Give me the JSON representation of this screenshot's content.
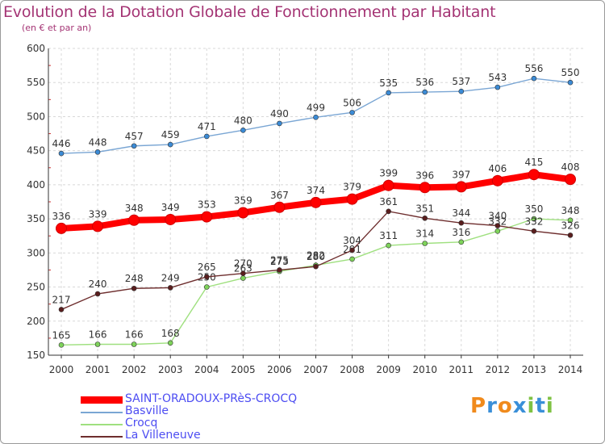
{
  "header": {
    "title": "Evolution de la Dotation Globale de Fonctionnement par Habitant",
    "subtitle": "(en € et par an)"
  },
  "chart_data": {
    "type": "line",
    "title": "Evolution de la Dotation Globale de Fonctionnement par Habitant",
    "subtitle": "(en € et par an)",
    "x": [
      2000,
      2001,
      2002,
      2003,
      2004,
      2005,
      2006,
      2007,
      2008,
      2009,
      2010,
      2011,
      2012,
      2013,
      2014
    ],
    "ylim": [
      150,
      600
    ],
    "yticks": [
      150,
      200,
      250,
      300,
      350,
      400,
      450,
      500,
      550,
      600
    ],
    "grid": true,
    "legend_position": "bottom-left",
    "series": [
      {
        "name": "Basville",
        "color": "#7aa6d4",
        "marker": "#3b8bd6",
        "values": [
          446,
          448,
          457,
          459,
          471,
          480,
          490,
          499,
          506,
          535,
          536,
          537,
          543,
          556,
          550
        ]
      },
      {
        "name": "Crocq",
        "color": "#9fe07f",
        "marker": "#7ed35a",
        "values": [
          165,
          166,
          166,
          168,
          250,
          263,
          273,
          282,
          291,
          311,
          314,
          316,
          332,
          350,
          348
        ]
      },
      {
        "name": "La Villeneuve",
        "color": "#6e2e2e",
        "marker": "#5a1e1e",
        "values": [
          217,
          240,
          248,
          249,
          265,
          270,
          275,
          280,
          304,
          361,
          351,
          344,
          340,
          332,
          326
        ]
      },
      {
        "name": "SAINT-ORADOUX-PRèS-CROCQ",
        "color": "#ff0000",
        "marker": "#ff0000",
        "highlight": true,
        "values": [
          336,
          339,
          348,
          349,
          353,
          359,
          367,
          374,
          379,
          399,
          396,
          397,
          406,
          415,
          408
        ]
      }
    ]
  },
  "legend": {
    "items": [
      {
        "name": "SAINT-ORADOUX-PRèS-CROCQ",
        "color": "#ff0000",
        "thick": true
      },
      {
        "name": "Basville",
        "color": "#7aa6d4",
        "thick": false
      },
      {
        "name": "Crocq",
        "color": "#9fe07f",
        "thick": false
      },
      {
        "name": "La Villeneuve",
        "color": "#6e2e2e",
        "thick": false
      }
    ]
  },
  "brand": {
    "letters": [
      "P",
      "r",
      "o",
      "x",
      "i",
      "t",
      "i"
    ],
    "colors": [
      "#f08a1c",
      "#3a8fd8",
      "#f08a1c",
      "#3a8fd8",
      "#7fc243",
      "#3a8fd8",
      "#7fc243"
    ]
  }
}
